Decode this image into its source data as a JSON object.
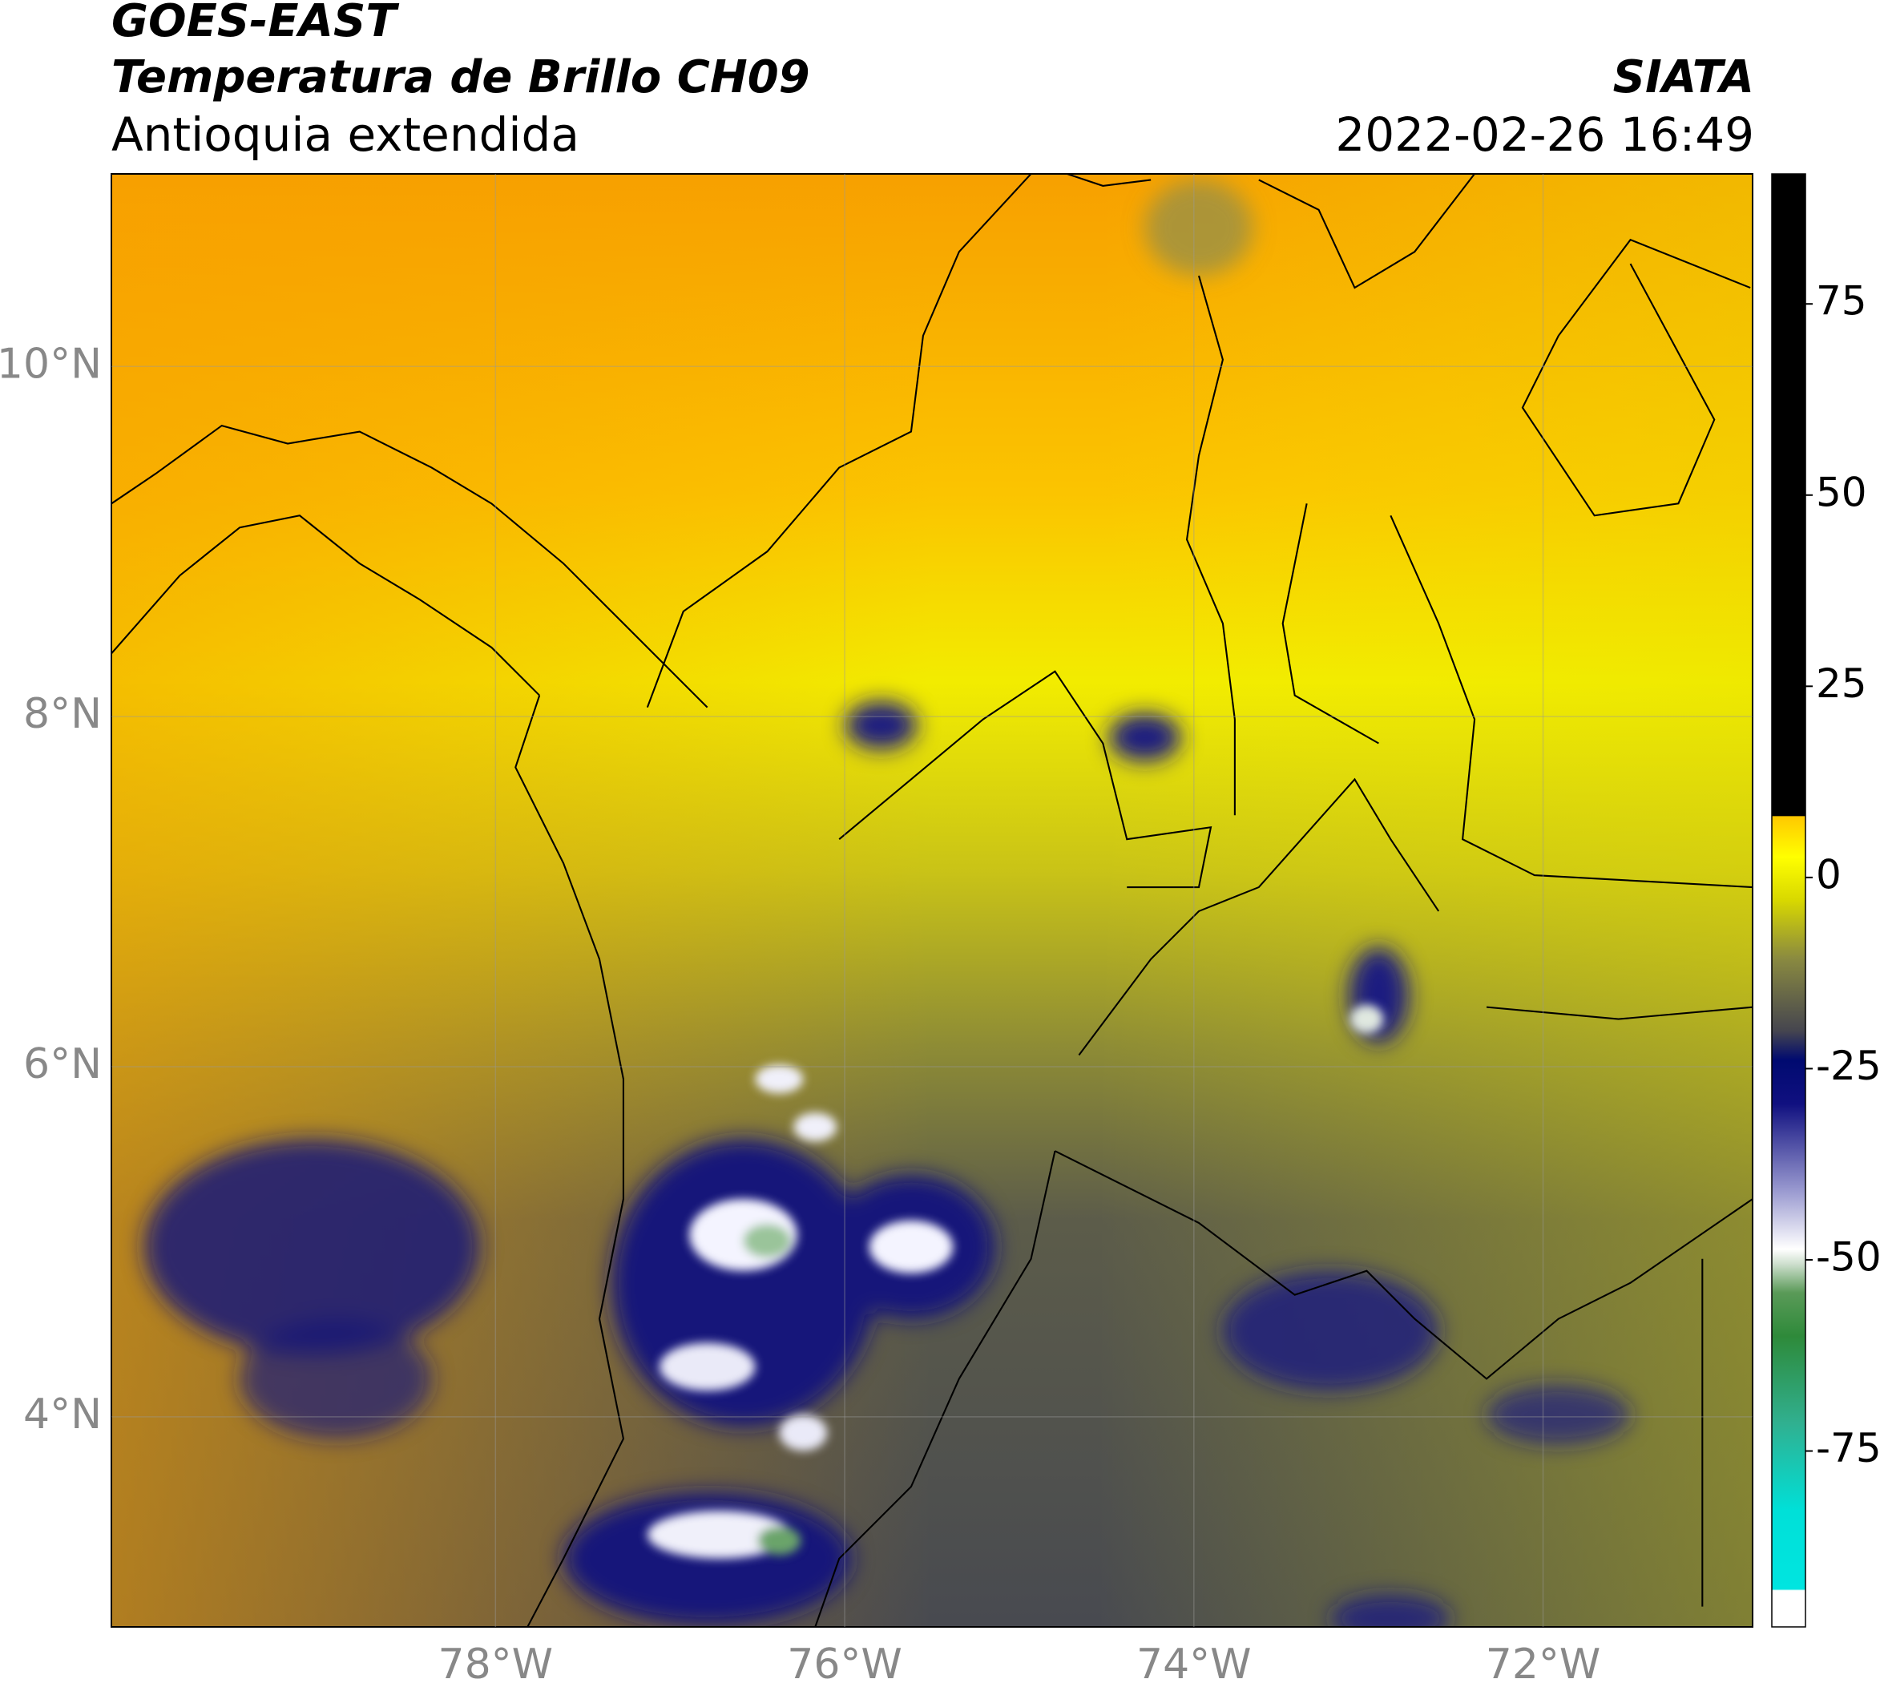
{
  "header": {
    "title": "GOES-EAST",
    "subtitle": "Temperatura de Brillo CH09",
    "region": "Antioquia extendida",
    "source": "SIATA",
    "timestamp": "2022-02-26 16:49"
  },
  "map": {
    "lon_range": [
      -80.2,
      -70.8
    ],
    "lat_range": [
      2.8,
      11.1
    ],
    "lon_ticks": [
      {
        "value": -78,
        "label": "78°W"
      },
      {
        "value": -76,
        "label": "76°W"
      },
      {
        "value": -74,
        "label": "74°W"
      },
      {
        "value": -72,
        "label": "72°W"
      }
    ],
    "lat_ticks": [
      {
        "value": 10,
        "label": "10°N"
      },
      {
        "value": 8,
        "label": "8°N"
      },
      {
        "value": 6,
        "label": "6°N"
      },
      {
        "value": 4,
        "label": "4°N"
      }
    ],
    "grid": true
  },
  "colorbar": {
    "range": [
      -98,
      92
    ],
    "ticks": [
      75,
      50,
      25,
      0,
      -25,
      -50,
      -75
    ]
  }
}
